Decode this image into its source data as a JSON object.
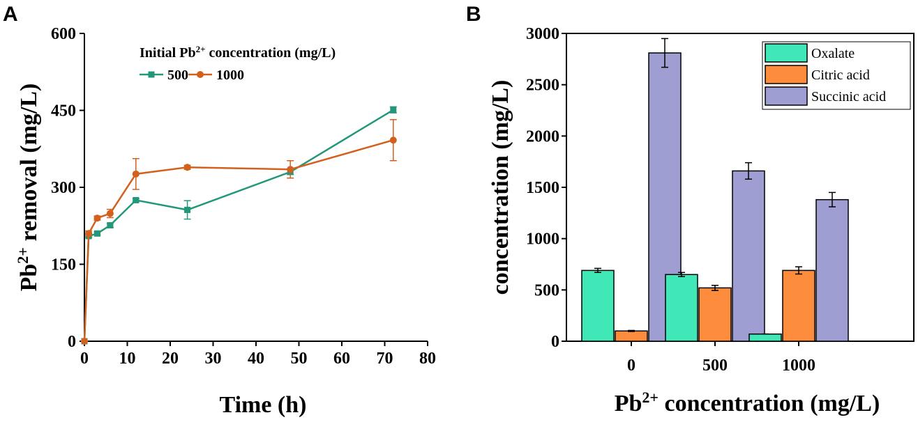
{
  "chart_data": [
    {
      "type": "line",
      "panel": "A",
      "xlabel": "Time (h)",
      "ylabel": [
        "Pb",
        "2+",
        " removal (mg/L)"
      ],
      "legend_title": [
        "Initial Pb",
        "2+",
        " concentration (mg/L)"
      ],
      "x": [
        0,
        1,
        3,
        6,
        12,
        24,
        48,
        72
      ],
      "series": [
        {
          "name": "500",
          "color": "#23977a",
          "marker": "square",
          "values": [
            0,
            205,
            210,
            226,
            275,
            256,
            330,
            451
          ],
          "errors": [
            0,
            3,
            3,
            4,
            3,
            18,
            5,
            6
          ]
        },
        {
          "name": "1000",
          "color": "#d2611d",
          "marker": "circle",
          "values": [
            0,
            210,
            240,
            249,
            326,
            339,
            335,
            392
          ],
          "errors": [
            0,
            5,
            4,
            8,
            30,
            4,
            17,
            40
          ]
        }
      ],
      "xlim": [
        0,
        80
      ],
      "xticks": [
        0,
        10,
        20,
        30,
        40,
        50,
        60,
        70,
        80
      ],
      "ylim": [
        0,
        600
      ],
      "yticks": [
        0,
        150,
        300,
        450,
        600
      ],
      "grid": false
    },
    {
      "type": "bar",
      "panel": "B",
      "xlabel": [
        "Pb",
        "2+",
        " concentration (mg/L)"
      ],
      "ylabel": "concentration (mg/L)",
      "categories": [
        "0",
        "500",
        "1000"
      ],
      "series": [
        {
          "name": "Oxalate",
          "color": "#3fe8b6",
          "values": [
            690,
            650,
            70
          ],
          "errors": [
            20,
            20,
            0
          ]
        },
        {
          "name": "Citric acid",
          "color": "#fd8c3c",
          "values": [
            100,
            520,
            690
          ],
          "errors": [
            5,
            25,
            35
          ]
        },
        {
          "name": "Succinic acid",
          "color": "#9e9ed2",
          "values": [
            2810,
            1660,
            1380
          ],
          "errors": [
            140,
            80,
            70
          ]
        }
      ],
      "ylim": [
        0,
        3000
      ],
      "yticks": [
        0,
        500,
        1000,
        1500,
        2000,
        2500,
        3000
      ],
      "grid": false
    }
  ]
}
